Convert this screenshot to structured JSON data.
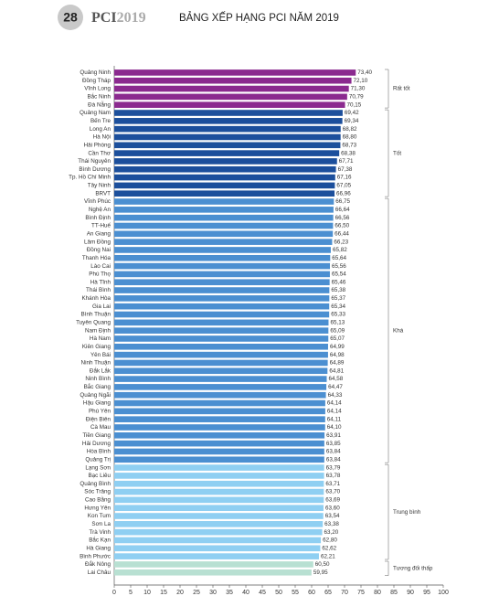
{
  "header": {
    "page_number": "28",
    "brand": "PCI",
    "year": "2019"
  },
  "chart_data": {
    "type": "bar",
    "orientation": "horizontal",
    "title": "BẢNG XẾP HẠNG PCI NĂM 2019",
    "xlim": [
      0,
      100
    ],
    "xticks": [
      0,
      5,
      10,
      15,
      20,
      25,
      30,
      35,
      40,
      45,
      50,
      55,
      60,
      65,
      70,
      75,
      80,
      85,
      90,
      95,
      100
    ],
    "groups": [
      {
        "name": "Rất tốt",
        "color": "#8b2a8f",
        "categories": [
          "Quảng Ninh",
          "Đồng Tháp",
          "Vĩnh Long",
          "Bắc Ninh",
          "Đà Nẵng"
        ],
        "values": [
          73.4,
          72.1,
          71.3,
          70.79,
          70.15
        ],
        "value_labels": [
          "73,40",
          "72,10",
          "71,30",
          "70,79",
          "70,15"
        ]
      },
      {
        "name": "Tốt",
        "color": "#1c4f9c",
        "categories": [
          "Quảng Nam",
          "Bến Tre",
          "Long An",
          "Hà Nội",
          "Hải Phòng",
          "Cần Thơ",
          "Thái Nguyên",
          "Bình Dương",
          "Tp. Hồ Chí Minh",
          "Tây Ninh",
          "BRVT"
        ],
        "values": [
          69.42,
          69.34,
          68.82,
          68.8,
          68.73,
          68.38,
          67.71,
          67.38,
          67.16,
          67.05,
          66.96
        ],
        "value_labels": [
          "69,42",
          "69,34",
          "68,82",
          "68,80",
          "68,73",
          "68,38",
          "67,71",
          "67,38",
          "67,16",
          "67,05",
          "66,96"
        ]
      },
      {
        "name": "Khá",
        "color": "#4b8fd1",
        "categories": [
          "Vĩnh Phúc",
          "Nghệ An",
          "Bình Định",
          "TT-Huế",
          "An Giang",
          "Lâm Đồng",
          "Đồng Nai",
          "Thanh Hóa",
          "Lào Cai",
          "Phú Thọ",
          "Hà Tĩnh",
          "Thái Bình",
          "Khánh Hòa",
          "Gia Lai",
          "Bình Thuận",
          "Tuyên Quang",
          "Nam Định",
          "Hà Nam",
          "Kiên Giang",
          "Yên Bái",
          "Ninh Thuận",
          "Đắk Lắk",
          "Ninh Bình",
          "Bắc Giang",
          "Quảng Ngãi",
          "Hậu Giang",
          "Phú Yên",
          "Điện Biên",
          "Cà Mau",
          "Tiền Giang",
          "Hải Dương",
          "Hòa Bình",
          "Quảng Trị"
        ],
        "values": [
          66.75,
          66.64,
          66.56,
          66.5,
          66.44,
          66.23,
          65.82,
          65.64,
          65.56,
          65.54,
          65.46,
          65.38,
          65.37,
          65.34,
          65.33,
          65.13,
          65.09,
          65.07,
          64.99,
          64.98,
          64.89,
          64.81,
          64.58,
          64.47,
          64.33,
          64.14,
          64.14,
          64.11,
          64.1,
          63.91,
          63.85,
          63.84,
          63.84
        ],
        "value_labels": [
          "66,75",
          "66,64",
          "66,56",
          "66,50",
          "66,44",
          "66,23",
          "65,82",
          "65,64",
          "65,56",
          "65,54",
          "65,46",
          "65,38",
          "65,37",
          "65,34",
          "65,33",
          "65,13",
          "65,09",
          "65,07",
          "64,99",
          "64,98",
          "64,89",
          "64,81",
          "64,58",
          "64,47",
          "64,33",
          "64,14",
          "64,14",
          "64,11",
          "64,10",
          "63,91",
          "63,85",
          "63,84",
          "63,84"
        ]
      },
      {
        "name": "Trung bình",
        "color": "#8fcff2",
        "categories": [
          "Lạng Sơn",
          "Bạc Liêu",
          "Quảng Bình",
          "Sóc Trăng",
          "Cao Bằng",
          "Hưng Yên",
          "Kon Tum",
          "Sơn La",
          "Trà Vinh",
          "Bắc Kạn",
          "Hà Giang",
          "Bình Phước"
        ],
        "values": [
          63.79,
          63.78,
          63.71,
          63.7,
          63.69,
          63.6,
          63.54,
          63.38,
          63.2,
          62.8,
          62.62,
          62.21
        ],
        "value_labels": [
          "63,79",
          "63,78",
          "63,71",
          "63,70",
          "63,69",
          "63,60",
          "63,54",
          "63,38",
          "63,20",
          "62,80",
          "62,62",
          "62,21"
        ]
      },
      {
        "name": "Tương đối thấp",
        "color": "#b8e0d2",
        "categories": [
          "Đắk Nông",
          "Lai Châu"
        ],
        "values": [
          60.5,
          59.95
        ],
        "value_labels": [
          "60,50",
          "59,95"
        ]
      }
    ]
  }
}
